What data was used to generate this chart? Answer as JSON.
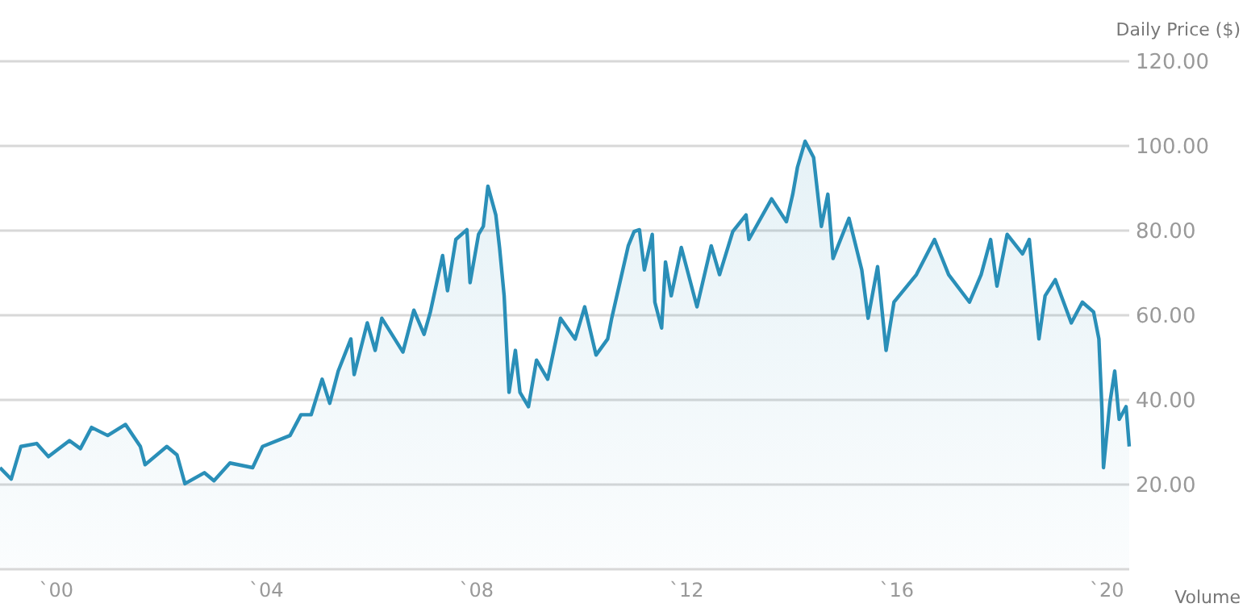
{
  "chart_data": {
    "type": "area",
    "ylabel": "Daily Price ($)",
    "annotations": [
      "Volume"
    ],
    "grid": "y",
    "xlim": [
      "1998-12-05",
      "2020-06-05"
    ],
    "ylim": [
      0,
      120
    ],
    "xticks": [
      {
        "value": "2000",
        "label": "`00"
      },
      {
        "value": "2004",
        "label": "`04"
      },
      {
        "value": "2008",
        "label": "`08"
      },
      {
        "value": "2012",
        "label": "`12"
      },
      {
        "value": "2016",
        "label": "`16"
      },
      {
        "value": "2020",
        "label": "`20"
      }
    ],
    "yticks": [
      {
        "value": 20,
        "label": "20.00"
      },
      {
        "value": 40,
        "label": "40.00"
      },
      {
        "value": 60,
        "label": "60.00"
      },
      {
        "value": 80,
        "label": "80.00"
      },
      {
        "value": 100,
        "label": "100.00"
      },
      {
        "value": 120,
        "label": "120.00"
      }
    ],
    "series": [
      {
        "color": "#2a8fb8",
        "x": [
          "1998-12-05",
          "1999-02-21",
          "1999-04-29",
          "1999-08-17",
          "1999-11-07",
          "2000-04-01",
          "2000-06-16",
          "2000-09-02",
          "2000-12-23",
          "2001-04-26",
          "2001-08-07",
          "2001-09-09",
          "2002-02-07",
          "2002-04-19",
          "2002-06-13",
          "2002-10-26",
          "2003-01-01",
          "2003-04-22",
          "2003-09-27",
          "2003-12-05",
          "2004-06-13",
          "2004-08-28",
          "2004-11-07",
          "2005-01-22",
          "2005-03-16",
          "2005-05-14",
          "2005-08-10",
          "2005-09-02",
          "2005-12-02",
          "2006-01-26",
          "2006-03-13",
          "2006-08-07",
          "2006-10-22",
          "2007-01-01",
          "2007-02-14",
          "2007-05-10",
          "2007-06-13",
          "2007-08-10",
          "2007-10-26",
          "2007-11-17",
          "2008-01-15",
          "2008-02-17",
          "2008-03-20",
          "2008-05-14",
          "2008-06-09",
          "2008-07-11",
          "2008-08-14",
          "2008-09-27",
          "2008-10-29",
          "2008-12-27",
          "2009-02-21",
          "2009-05-10",
          "2009-08-07",
          "2009-11-17",
          "2010-01-22",
          "2010-04-11",
          "2010-07-01",
          "2010-07-29",
          "2010-11-21",
          "2011-01-01",
          "2011-02-07",
          "2011-03-13",
          "2011-05-07",
          "2011-05-25",
          "2011-07-11",
          "2011-08-07",
          "2011-09-16",
          "2011-11-25",
          "2012-03-13",
          "2012-06-20",
          "2012-08-17",
          "2012-11-17",
          "2013-02-17",
          "2013-03-09",
          "2013-08-14",
          "2013-11-25",
          "2014-01-08",
          "2014-02-10",
          "2014-04-04",
          "2014-06-02",
          "2014-07-26",
          "2014-09-09",
          "2014-10-15",
          "2015-02-03",
          "2015-05-03",
          "2015-06-16",
          "2015-08-21",
          "2015-10-19",
          "2015-12-13",
          "2016-05-17",
          "2016-09-20",
          "2016-12-27",
          "2017-05-21",
          "2017-08-10",
          "2017-10-15",
          "2017-11-28",
          "2018-02-07",
          "2018-05-25",
          "2018-07-11",
          "2018-09-16",
          "2018-10-29",
          "2019-01-08",
          "2019-04-29",
          "2019-07-15",
          "2019-10-01",
          "2019-11-07",
          "2019-11-28",
          "2019-12-09",
          "2020-01-22",
          "2020-02-25",
          "2020-03-27",
          "2020-05-14",
          "2020-06-05"
        ],
        "values": [
          24,
          21.3,
          29,
          29.7,
          26.6,
          30.4,
          28.5,
          33.5,
          31.6,
          34.2,
          29,
          24.7,
          29,
          27,
          20.2,
          22.8,
          20.9,
          25.1,
          24,
          29,
          31.6,
          36.5,
          36.5,
          44.9,
          39.2,
          46.8,
          54.4,
          46,
          58.2,
          51.7,
          59.3,
          51.3,
          61.2,
          55.5,
          60.8,
          74.1,
          65.8,
          77.9,
          80.2,
          67.7,
          79.1,
          81,
          90.5,
          83.7,
          76,
          64.6,
          41.8,
          51.7,
          41.8,
          38.4,
          49.4,
          44.9,
          59.3,
          54.4,
          62,
          50.6,
          54.4,
          59.3,
          76.4,
          79.8,
          80.2,
          70.7,
          79.1,
          63.1,
          57,
          72.6,
          64.6,
          76,
          62,
          76.4,
          69.6,
          79.8,
          83.7,
          77.9,
          87.5,
          82.1,
          88.6,
          95,
          101.1,
          97.3,
          81,
          88.6,
          73.4,
          82.9,
          70.7,
          59.3,
          71.5,
          51.7,
          63.1,
          69.6,
          77.9,
          69.6,
          63.1,
          69.6,
          77.9,
          66.9,
          79.1,
          74.5,
          77.9,
          54.4,
          64.6,
          68.4,
          58.2,
          63.1,
          60.8,
          54.4,
          38,
          24,
          39.2,
          46.8,
          35.4,
          38.4,
          29
        ]
      }
    ]
  }
}
